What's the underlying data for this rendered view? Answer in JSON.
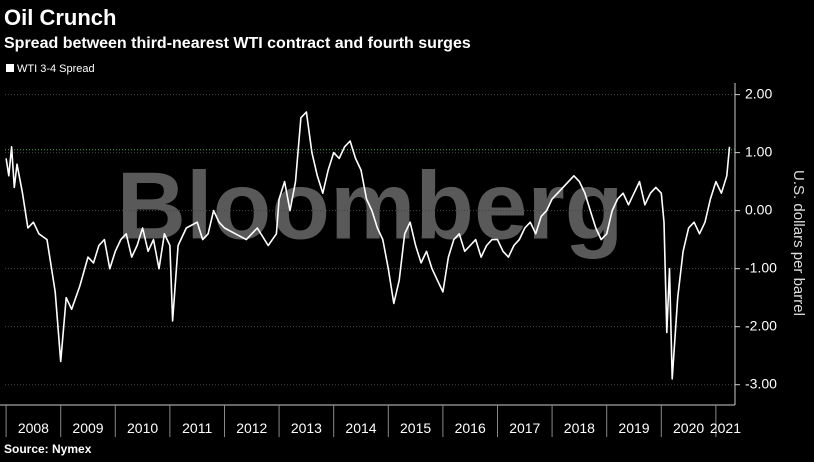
{
  "chart_data": {
    "type": "line",
    "title": "Oil Crunch",
    "subtitle": "Spread between third-nearest WTI contract and fourth surges",
    "watermark": "Bloomberg",
    "source": "Source: Nymex",
    "y_label": "U.S. dollars per barrel",
    "x": [
      2008.0,
      2008.05,
      2008.1,
      2008.15,
      2008.2,
      2008.3,
      2008.4,
      2008.5,
      2008.6,
      2008.75,
      2008.9,
      2009.0,
      2009.1,
      2009.2,
      2009.35,
      2009.5,
      2009.6,
      2009.7,
      2009.8,
      2009.9,
      2010.0,
      2010.1,
      2010.2,
      2010.3,
      2010.4,
      2010.5,
      2010.6,
      2010.7,
      2010.8,
      2010.9,
      2011.0,
      2011.05,
      2011.15,
      2011.3,
      2011.5,
      2011.6,
      2011.7,
      2011.8,
      2011.9,
      2012.0,
      2012.2,
      2012.4,
      2012.6,
      2012.8,
      2012.95,
      2013.0,
      2013.1,
      2013.2,
      2013.3,
      2013.4,
      2013.5,
      2013.6,
      2013.7,
      2013.8,
      2013.9,
      2014.0,
      2014.1,
      2014.2,
      2014.3,
      2014.4,
      2014.5,
      2014.6,
      2014.7,
      2014.8,
      2014.9,
      2015.0,
      2015.1,
      2015.2,
      2015.3,
      2015.4,
      2015.5,
      2015.6,
      2015.7,
      2015.8,
      2015.9,
      2016.0,
      2016.1,
      2016.2,
      2016.3,
      2016.4,
      2016.5,
      2016.6,
      2016.7,
      2016.8,
      2016.9,
      2017.0,
      2017.1,
      2017.2,
      2017.3,
      2017.4,
      2017.5,
      2017.6,
      2017.7,
      2017.8,
      2017.9,
      2018.0,
      2018.1,
      2018.2,
      2018.3,
      2018.4,
      2018.5,
      2018.6,
      2018.7,
      2018.8,
      2018.9,
      2019.0,
      2019.1,
      2019.2,
      2019.3,
      2019.4,
      2019.5,
      2019.6,
      2019.7,
      2019.8,
      2019.9,
      2020.0,
      2020.05,
      2020.1,
      2020.15,
      2020.2,
      2020.3,
      2020.4,
      2020.5,
      2020.6,
      2020.7,
      2020.8,
      2020.9,
      2021.0,
      2021.1,
      2021.2,
      2021.25
    ],
    "series": [
      {
        "name": "WTI 3-4 Spread",
        "color": "#ffffff",
        "values": [
          0.9,
          0.6,
          1.1,
          0.4,
          0.8,
          0.3,
          -0.3,
          -0.2,
          -0.4,
          -0.5,
          -1.4,
          -2.6,
          -1.5,
          -1.7,
          -1.3,
          -0.8,
          -0.9,
          -0.6,
          -0.5,
          -1.0,
          -0.7,
          -0.5,
          -0.4,
          -0.8,
          -0.6,
          -0.3,
          -0.7,
          -0.5,
          -1.0,
          -0.4,
          -0.6,
          -1.9,
          -0.6,
          -0.3,
          -0.2,
          -0.5,
          -0.4,
          0.0,
          -0.2,
          -0.3,
          -0.4,
          -0.5,
          -0.3,
          -0.6,
          -0.4,
          0.2,
          0.5,
          0.0,
          0.5,
          1.6,
          1.7,
          1.0,
          0.6,
          0.3,
          0.7,
          1.0,
          0.9,
          1.1,
          1.2,
          0.9,
          0.7,
          0.2,
          0.0,
          -0.3,
          -0.5,
          -1.0,
          -1.6,
          -1.2,
          -0.4,
          -0.2,
          -0.6,
          -0.9,
          -0.7,
          -1.0,
          -1.2,
          -1.4,
          -0.8,
          -0.5,
          -0.4,
          -0.7,
          -0.6,
          -0.5,
          -0.8,
          -0.6,
          -0.5,
          -0.5,
          -0.7,
          -0.8,
          -0.6,
          -0.5,
          -0.3,
          -0.2,
          -0.4,
          -0.1,
          0.0,
          0.2,
          0.3,
          0.4,
          0.5,
          0.6,
          0.5,
          0.3,
          0.0,
          -0.3,
          -0.5,
          -0.4,
          0.0,
          0.2,
          0.3,
          0.1,
          0.3,
          0.5,
          0.1,
          0.3,
          0.4,
          0.3,
          -0.2,
          -2.1,
          -1.0,
          -2.9,
          -1.5,
          -0.7,
          -0.3,
          -0.2,
          -0.4,
          -0.2,
          0.2,
          0.5,
          0.3,
          0.6,
          1.1
        ]
      }
    ],
    "reference_line": 1.05,
    "xlim": [
      2007.98,
      2021.35
    ],
    "xticks": [
      2008,
      2009,
      2010,
      2011,
      2012,
      2013,
      2014,
      2015,
      2016,
      2017,
      2018,
      2019,
      2020,
      2021
    ],
    "ylim": [
      -3.35,
      2.2
    ],
    "yticks": [
      {
        "value": 2,
        "label": "2.00"
      },
      {
        "value": 1,
        "label": "1.00"
      },
      {
        "value": 0,
        "label": "0.00"
      },
      {
        "value": -1,
        "label": "-1.00"
      },
      {
        "value": -2,
        "label": "-2.00"
      },
      {
        "value": -3,
        "label": "-3.00"
      }
    ],
    "grid": true
  }
}
